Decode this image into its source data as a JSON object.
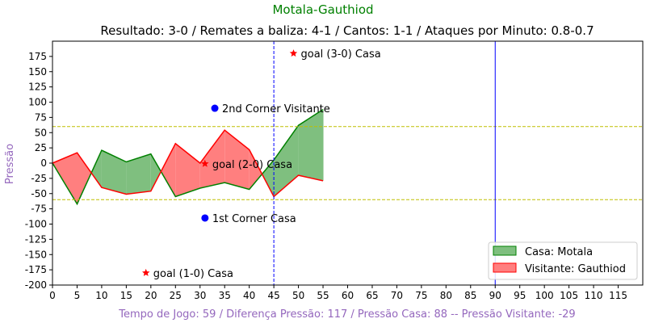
{
  "chart_data": {
    "type": "area",
    "title": "Motala-Gauthiod",
    "subtitle": "Resultado: 3-0 / Remates a baliza: 4-1 / Cantos: 1-1 / Ataques por Minuto: 0.8-0.7",
    "xlabel": "Tempo de Jogo: 59 / Diferença Pressão: 117 / Pressão Casa: 88 -- Pressão Visitante: -29",
    "ylabel": "Pressão",
    "xlim": [
      0,
      120
    ],
    "ylim": [
      -200,
      200
    ],
    "x_ticks": [
      0,
      5,
      10,
      15,
      20,
      25,
      30,
      35,
      40,
      45,
      50,
      55,
      60,
      65,
      70,
      75,
      80,
      85,
      90,
      95,
      100,
      105,
      110,
      115
    ],
    "y_ticks": [
      -200,
      -175,
      -150,
      -125,
      -100,
      -75,
      -50,
      -25,
      0,
      25,
      50,
      75,
      100,
      125,
      150,
      175
    ],
    "x": [
      0,
      5,
      10,
      15,
      20,
      25,
      30,
      35,
      40,
      45,
      50,
      55
    ],
    "series": [
      {
        "name": "Casa: Motala",
        "color": "#008000",
        "fill": "#7fbf7f",
        "values": [
          0,
          -67,
          21,
          2,
          15,
          -55,
          -41,
          -32,
          -43,
          5,
          62,
          88
        ]
      },
      {
        "name": "Visitante: Gauthiod",
        "color": "#ff0000",
        "fill": "#ff7f7f",
        "values": [
          0,
          17,
          -40,
          -51,
          -46,
          32,
          0,
          54,
          22,
          -55,
          -20,
          -29
        ]
      }
    ],
    "hlines": [
      {
        "y": 60,
        "color": "#bfbf00",
        "style": "dashed"
      },
      {
        "y": -60,
        "color": "#bfbf00",
        "style": "dashed"
      }
    ],
    "vlines": [
      {
        "x": 45,
        "color": "#0000ff",
        "style": "dashed"
      },
      {
        "x": 90,
        "color": "#0000ff",
        "style": "solid"
      }
    ],
    "annotations": [
      {
        "x": 49,
        "y": 180,
        "marker": "star",
        "color": "#ff0000",
        "text": "goal (3-0) Casa"
      },
      {
        "x": 33,
        "y": 90,
        "marker": "dot",
        "color": "#0000ff",
        "text": "2nd Corner Visitante"
      },
      {
        "x": 31,
        "y": -1,
        "marker": "star",
        "color": "#ff0000",
        "text": "goal (2-0) Casa"
      },
      {
        "x": 31,
        "y": -90,
        "marker": "dot",
        "color": "#0000ff",
        "text": "1st Corner Casa"
      },
      {
        "x": 19,
        "y": -180,
        "marker": "star",
        "color": "#ff0000",
        "text": "goal (1-0) Casa"
      }
    ],
    "legend": {
      "position": "lower-right"
    },
    "colors": {
      "title": "#008000",
      "label": "#9467bd"
    }
  }
}
